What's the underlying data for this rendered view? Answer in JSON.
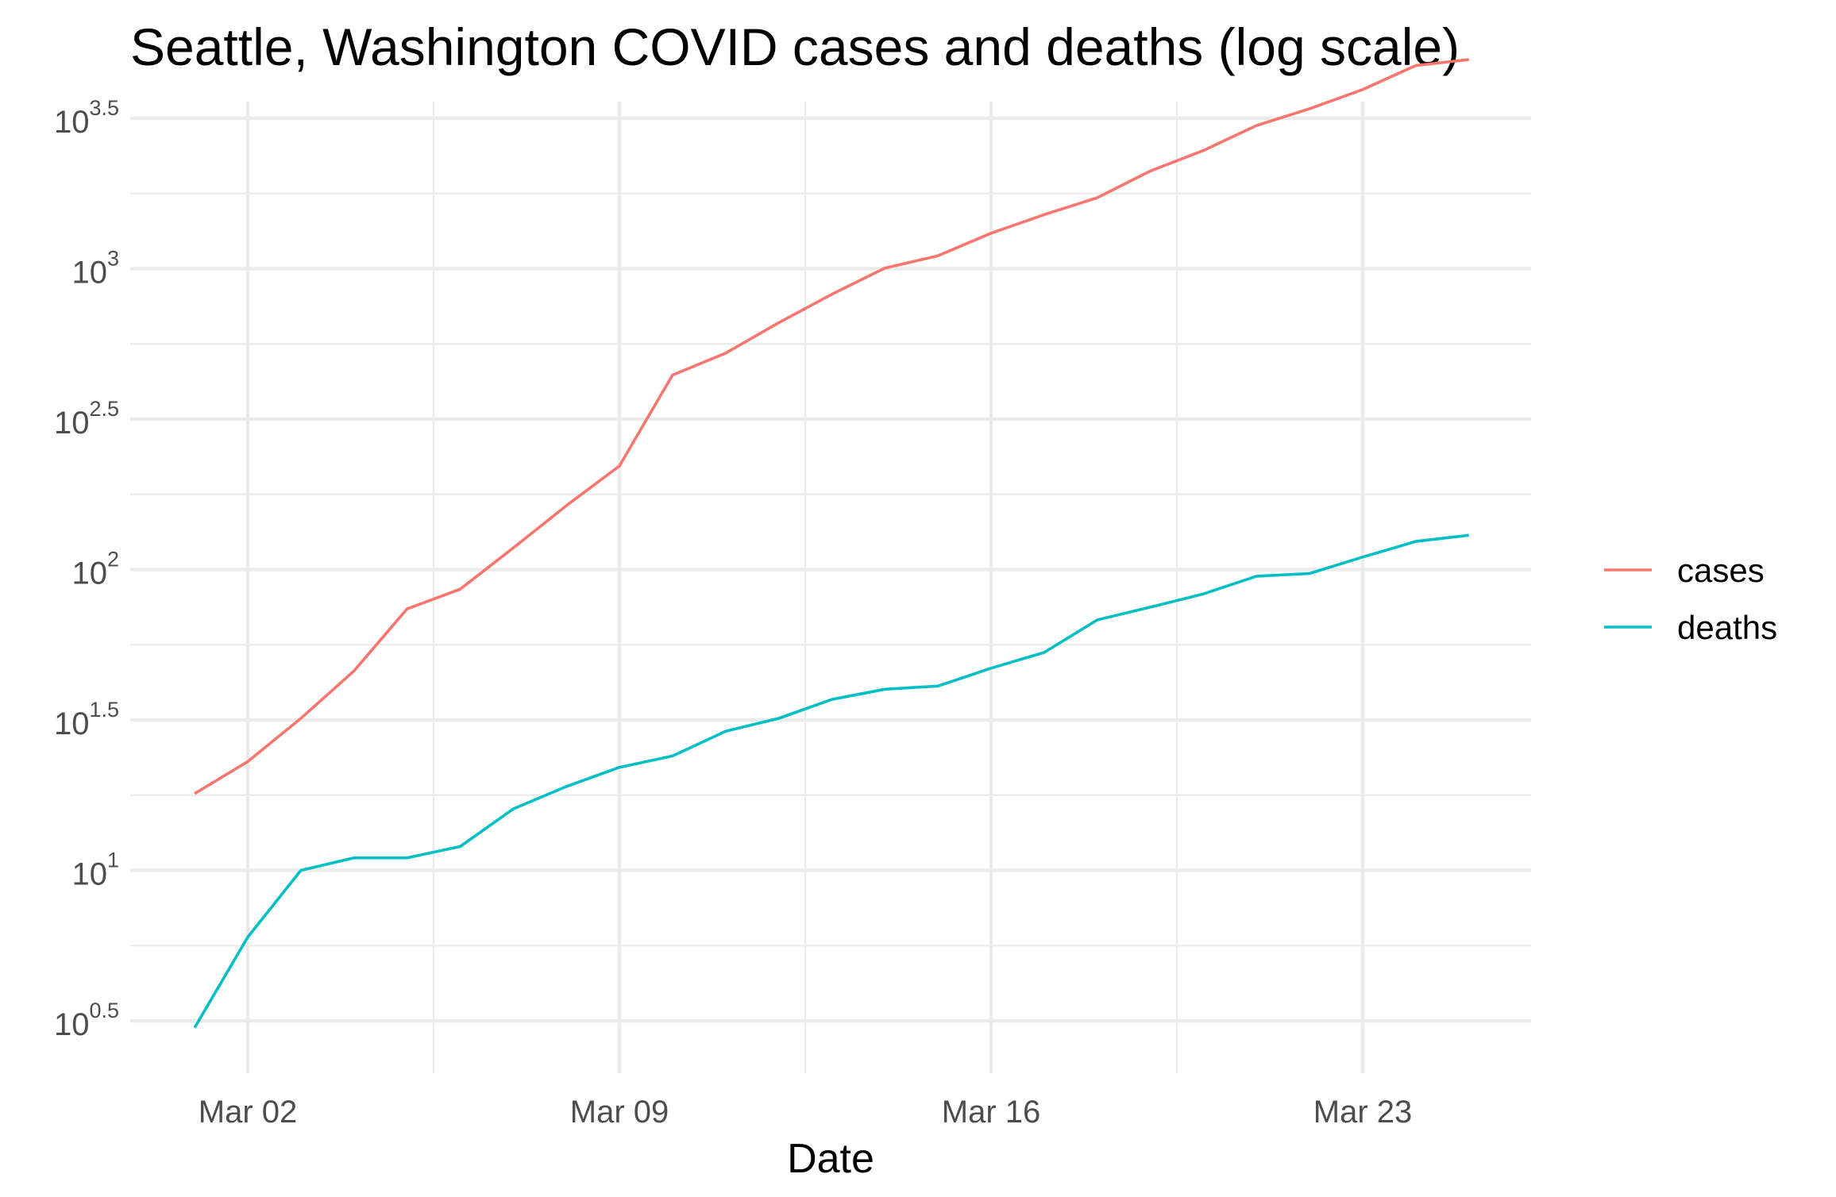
{
  "chart_data": {
    "type": "line",
    "title": "Seattle, Washington COVID cases and deaths (log scale)",
    "xlabel": "Date",
    "ylabel": "",
    "y_scale": "log10",
    "ylim_log10": [
      0.35,
      3.58
    ],
    "y_ticks": [
      {
        "base": "10",
        "exp": "0.5",
        "log10": 0.5
      },
      {
        "base": "10",
        "exp": "1",
        "log10": 1.0
      },
      {
        "base": "10",
        "exp": "1.5",
        "log10": 1.5
      },
      {
        "base": "10",
        "exp": "2",
        "log10": 2.0
      },
      {
        "base": "10",
        "exp": "2.5",
        "log10": 2.5
      },
      {
        "base": "10",
        "exp": "3",
        "log10": 3.0
      },
      {
        "base": "10",
        "exp": "3.5",
        "log10": 3.5
      }
    ],
    "x": [
      "2020-03-01",
      "2020-03-02",
      "2020-03-03",
      "2020-03-04",
      "2020-03-05",
      "2020-03-06",
      "2020-03-07",
      "2020-03-08",
      "2020-03-09",
      "2020-03-10",
      "2020-03-11",
      "2020-03-12",
      "2020-03-13",
      "2020-03-14",
      "2020-03-15",
      "2020-03-16",
      "2020-03-17",
      "2020-03-18",
      "2020-03-19",
      "2020-03-20",
      "2020-03-21",
      "2020-03-22",
      "2020-03-23",
      "2020-03-24",
      "2020-03-25"
    ],
    "x_ticks": [
      {
        "label": "Mar 02",
        "date": "2020-03-02"
      },
      {
        "label": "Mar 09",
        "date": "2020-03-09"
      },
      {
        "label": "Mar 16",
        "date": "2020-03-16"
      },
      {
        "label": "Mar 23",
        "date": "2020-03-23"
      }
    ],
    "series": [
      {
        "name": "cases",
        "color": "#F8766D",
        "values": [
          18,
          23,
          32,
          46,
          74,
          86,
          118,
          163,
          221,
          443,
          524,
          661,
          822,
          1004,
          1104,
          1312,
          1512,
          1721,
          2113,
          2471,
          2992,
          3401,
          3939,
          4736,
          4953
        ]
      },
      {
        "name": "deaths",
        "color": "#00BFC4",
        "values": [
          3,
          6,
          10,
          11,
          11,
          12,
          16,
          19,
          22,
          24,
          29,
          32,
          37,
          40,
          41,
          47,
          53,
          68,
          75,
          83,
          95,
          97,
          110,
          124,
          130
        ]
      }
    ],
    "legend": {
      "position": "right"
    },
    "grid": true
  }
}
